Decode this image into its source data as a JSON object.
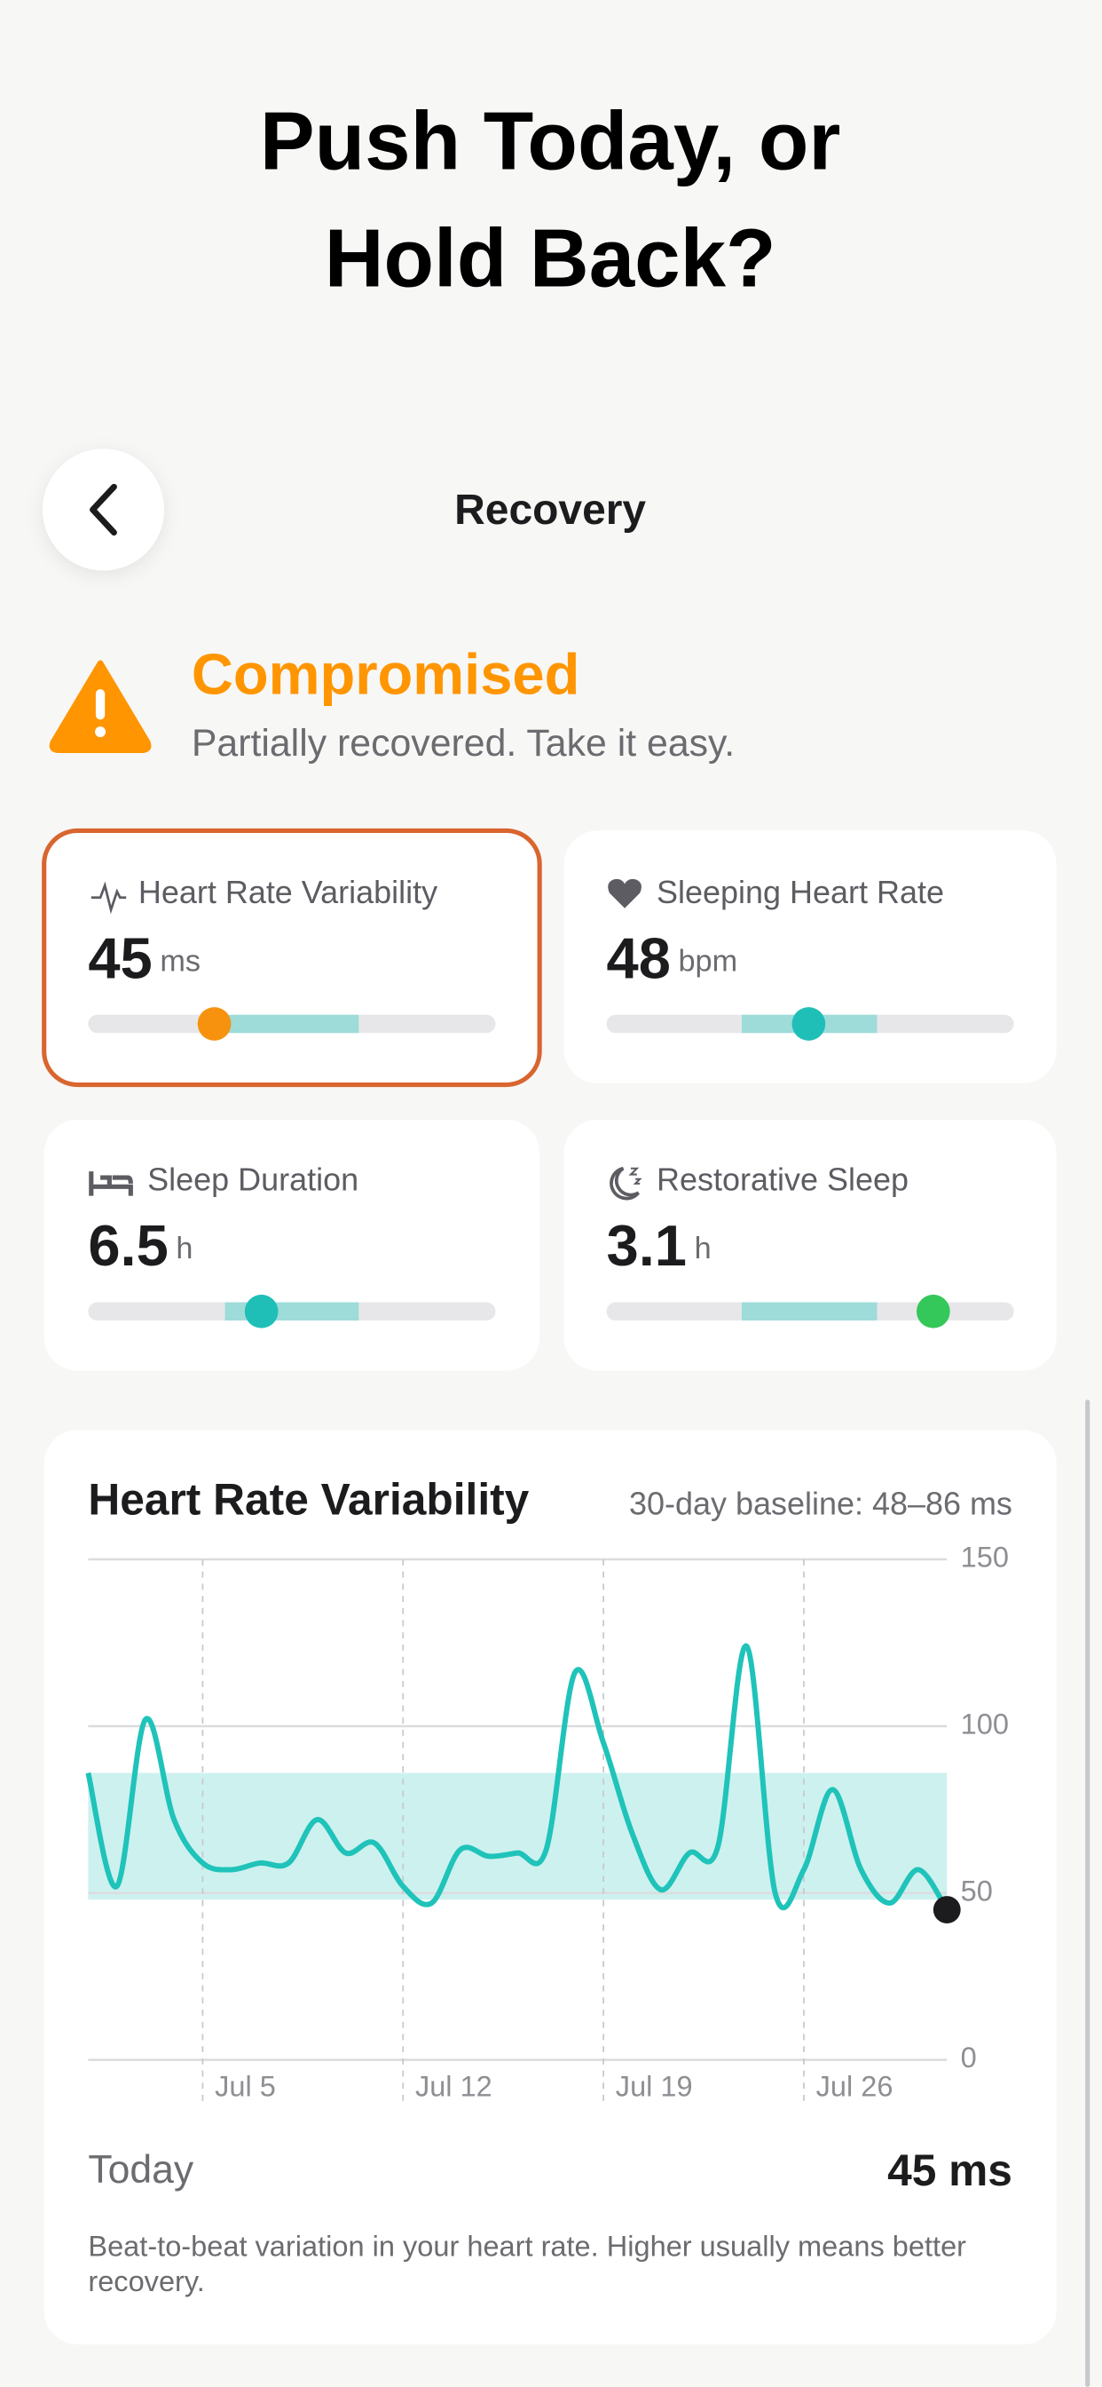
{
  "header": {
    "title_lines": [
      "Push Today, or",
      "Hold Back?"
    ]
  },
  "nav": {
    "title": "Recovery"
  },
  "status": {
    "label": "Compromised",
    "message": "Partially recovered. Take it easy."
  },
  "metrics": [
    {
      "label": "Heart Rate Variability",
      "value": 45,
      "unit": "ms"
    },
    {
      "label": "Sleeping Heart Rate",
      "value": 48,
      "unit": "bpm"
    },
    {
      "label": "Sleep Duration",
      "value": 6.5,
      "unit": "h"
    },
    {
      "label": "Restorative Sleep",
      "value": 3.1,
      "unit": "h"
    }
  ],
  "chart_data": {
    "type": "line",
    "title": "Heart Rate Variability",
    "subtitle": "30-day baseline: 48–86 ms",
    "categories": [
      null,
      null,
      null,
      null,
      "Jul 5",
      null,
      null,
      null,
      null,
      null,
      null,
      "Jul 12",
      null,
      null,
      null,
      null,
      null,
      null,
      "Jul 19",
      null,
      null,
      null,
      null,
      null,
      null,
      "Jul 26",
      null,
      null,
      null,
      null,
      null
    ],
    "values": [
      86,
      52,
      102,
      72,
      59,
      57,
      59,
      59,
      72,
      62,
      65,
      52,
      47,
      63,
      61,
      62,
      63,
      116,
      95,
      68,
      51,
      62,
      64,
      124,
      50,
      57,
      81,
      57,
      47,
      57,
      45
    ],
    "color": "#1fc3b9",
    "baseline_band": [
      48,
      86
    ],
    "band_color": "#cdf1ef",
    "last_point_color": "#1c1c1e",
    "ylim": [
      0,
      150
    ],
    "yticks": [
      0,
      50,
      100,
      150
    ],
    "grid": true
  },
  "chart_footer": {
    "label": "Today",
    "value": "45 ms",
    "description": "Beat-to-beat variation in your heart rate. Higher usually means better recovery."
  }
}
